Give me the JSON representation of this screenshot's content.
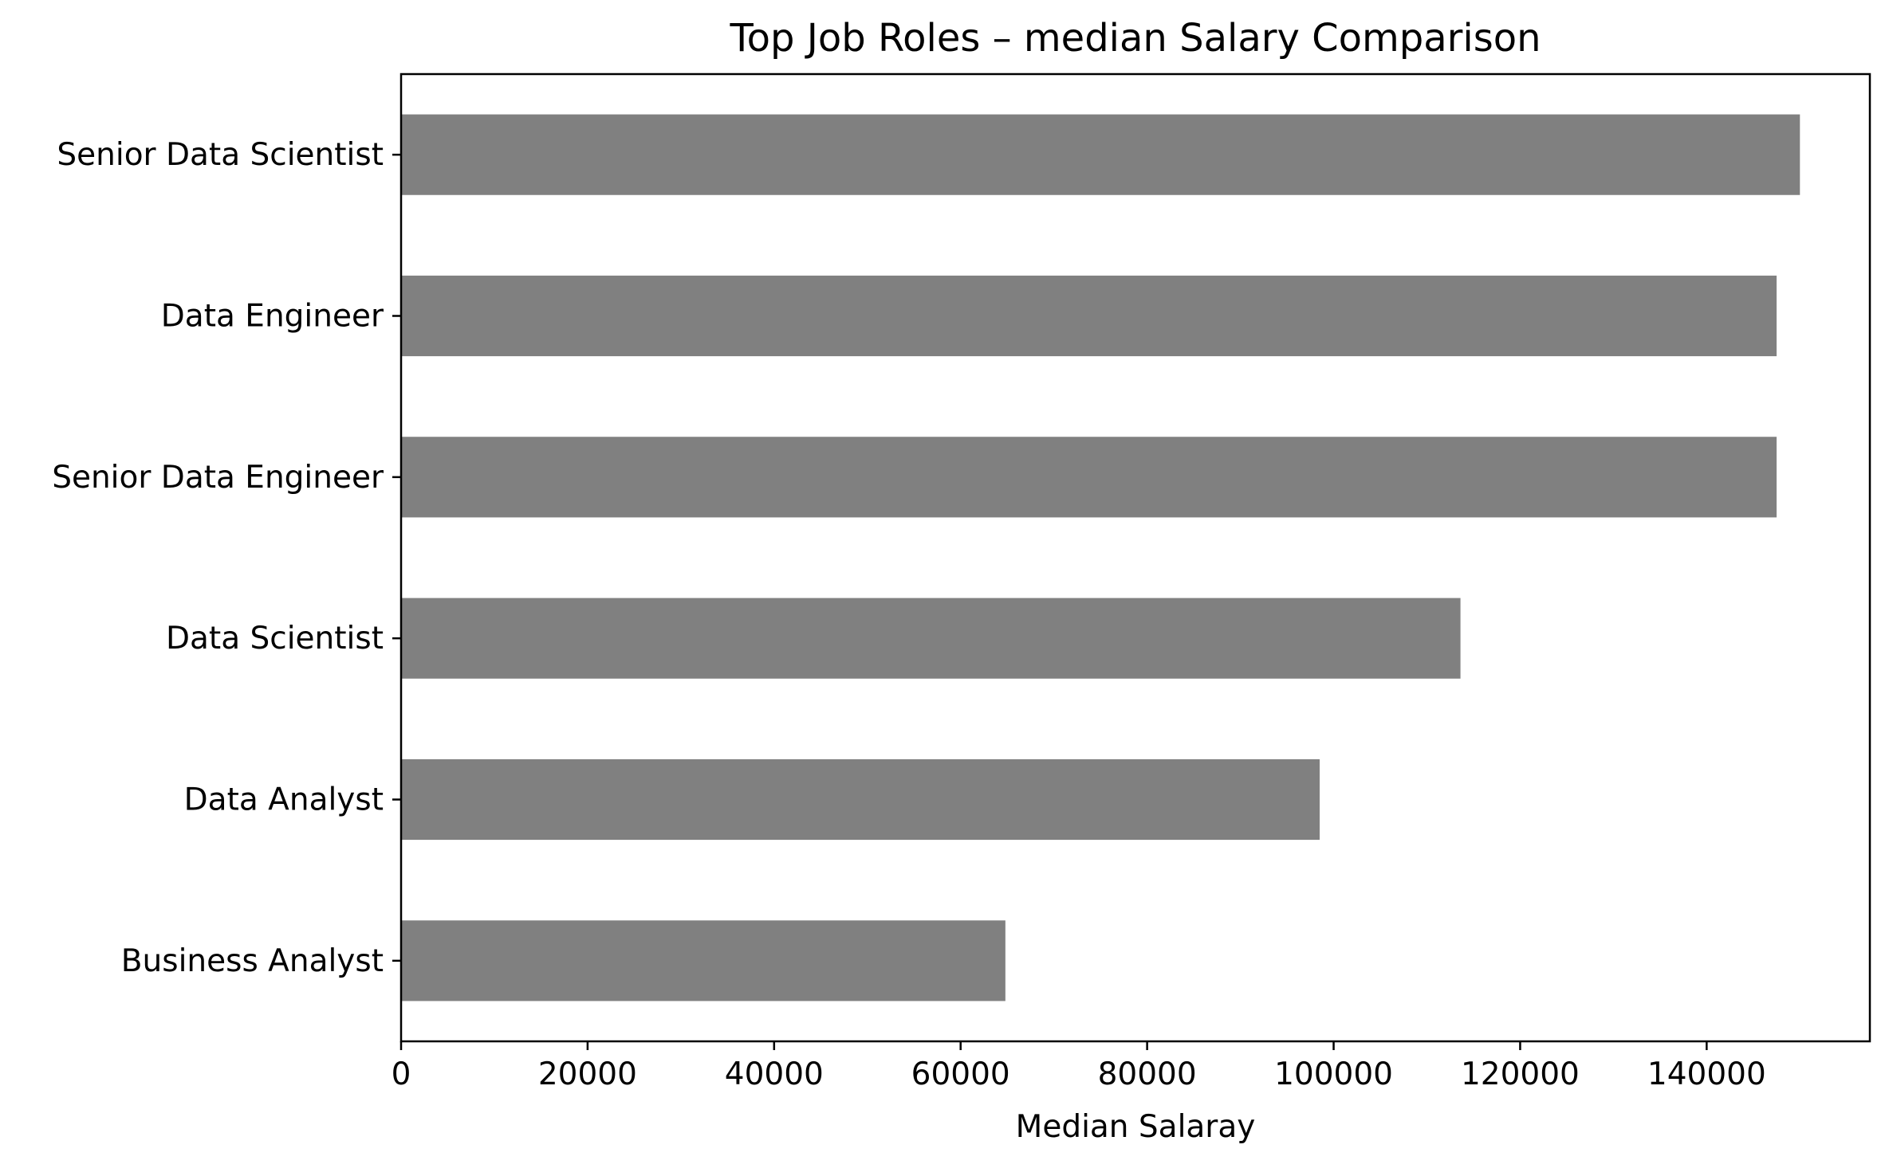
{
  "chart_data": {
    "type": "bar",
    "orientation": "horizontal",
    "title": "Top Job Roles – median Salary Comparison",
    "xlabel": "Median Salaray",
    "ylabel": "",
    "categories": [
      "Senior Data Scientist",
      "Data Engineer",
      "Senior Data Engineer",
      "Data Scientist",
      "Data Analyst",
      "Business Analyst"
    ],
    "values": [
      150000,
      147500,
      147500,
      113600,
      98500,
      64800
    ],
    "xlim": [
      0,
      157500
    ],
    "xticks": [
      "0",
      "20000",
      "40000",
      "60000",
      "80000",
      "100000",
      "120000",
      "140000"
    ],
    "bar_color": "#808080",
    "grid": false,
    "legend": "none"
  }
}
